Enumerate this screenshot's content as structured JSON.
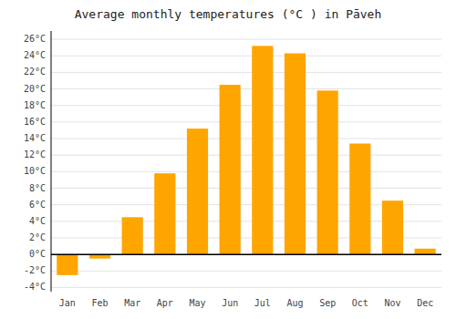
{
  "chart_data": {
    "type": "bar",
    "title": "Average monthly temperatures (°C ) in Pāveh",
    "categories": [
      "Jan",
      "Feb",
      "Mar",
      "Apr",
      "May",
      "Jun",
      "Jul",
      "Aug",
      "Sep",
      "Oct",
      "Nov",
      "Dec"
    ],
    "values": [
      -2.5,
      -0.5,
      4.5,
      9.8,
      15.2,
      20.5,
      25.2,
      24.3,
      19.8,
      13.4,
      6.5,
      0.7
    ],
    "color": "#FFA500",
    "ylim": [
      -4.5,
      27
    ],
    "yticks": [
      {
        "value": -4,
        "label": "-4°C"
      },
      {
        "value": -2,
        "label": "-2°C"
      },
      {
        "value": 0,
        "label": "0°C"
      },
      {
        "value": 2,
        "label": "2°C"
      },
      {
        "value": 4,
        "label": "4°C"
      },
      {
        "value": 6,
        "label": "6°C"
      },
      {
        "value": 8,
        "label": "8°C"
      },
      {
        "value": 10,
        "label": "10°C"
      },
      {
        "value": 12,
        "label": "12°C"
      },
      {
        "value": 14,
        "label": "14°C"
      },
      {
        "value": 16,
        "label": "16°C"
      },
      {
        "value": 18,
        "label": "18°C"
      },
      {
        "value": 20,
        "label": "20°C"
      },
      {
        "value": 22,
        "label": "22°C"
      },
      {
        "value": 24,
        "label": "24°C"
      },
      {
        "value": 26,
        "label": "26°C"
      }
    ],
    "grid": true
  }
}
